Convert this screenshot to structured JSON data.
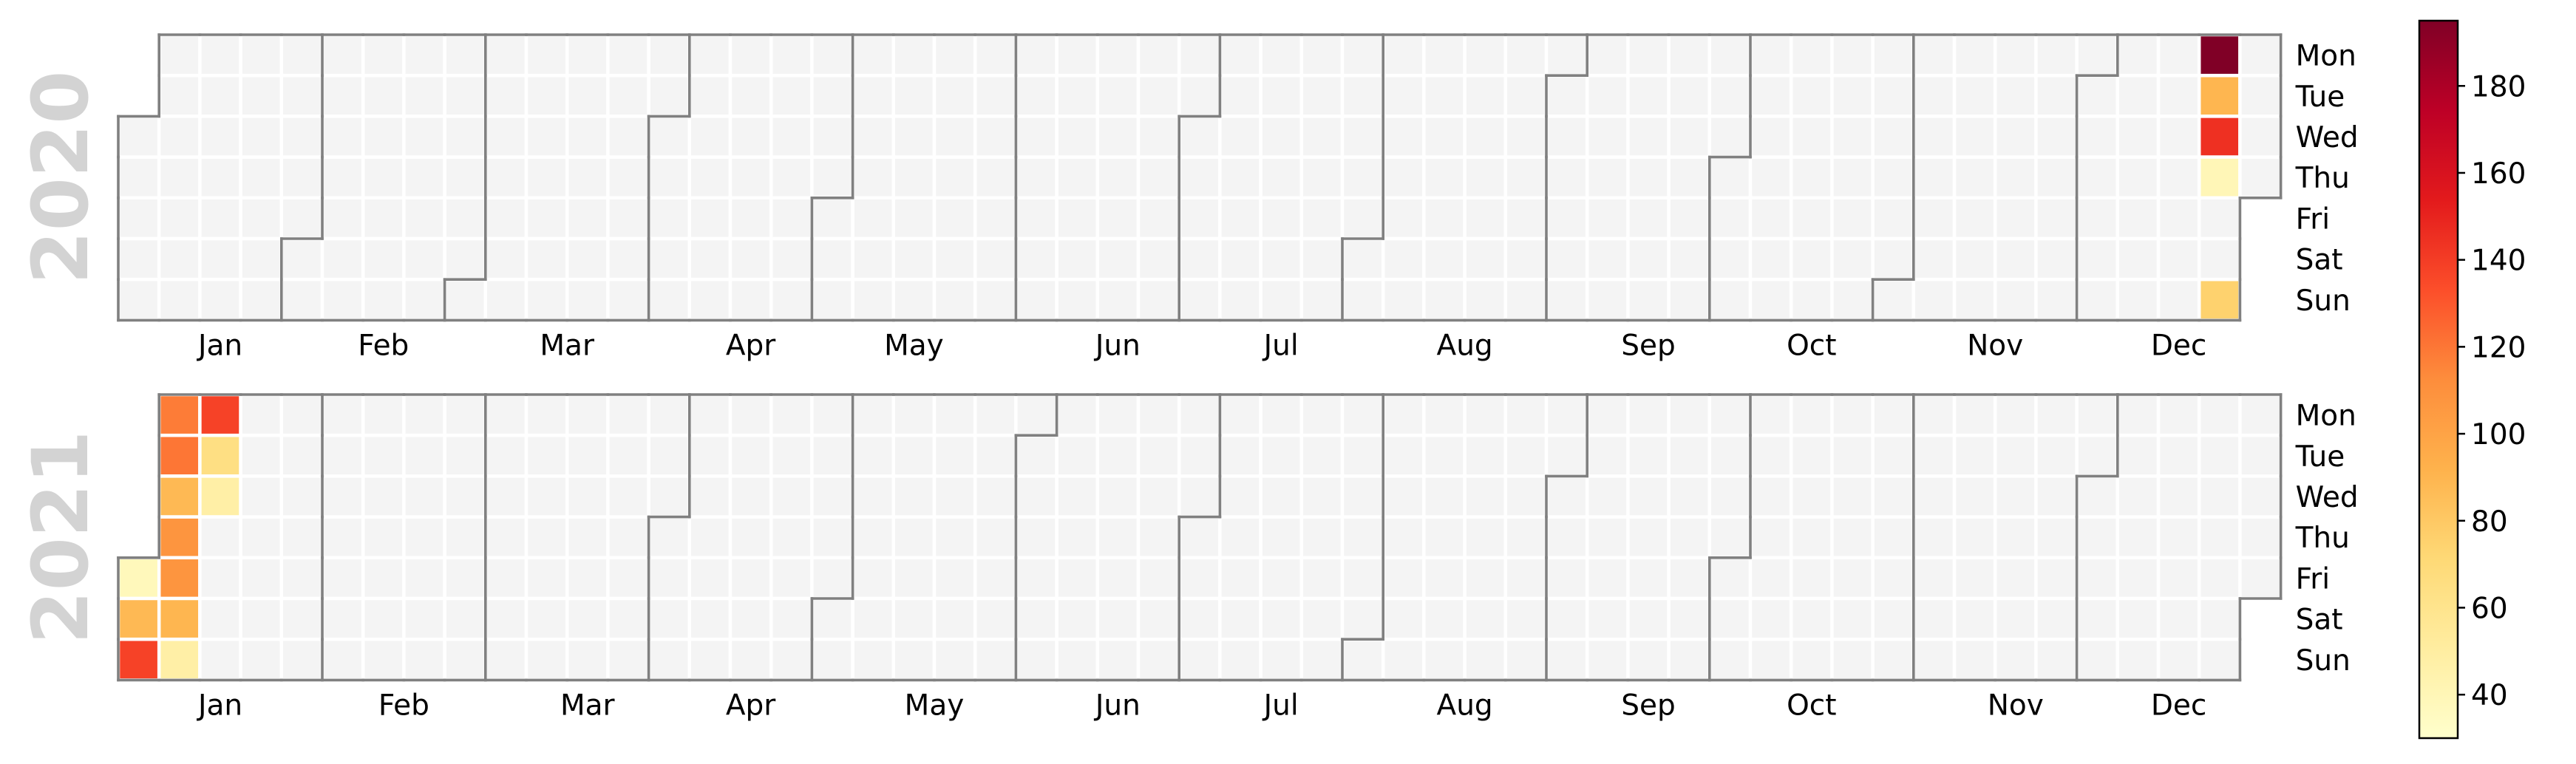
{
  "chart_data": {
    "type": "heatmap",
    "subtype": "calendar-heatmap",
    "years": [
      2020,
      2021
    ],
    "months": [
      "Jan",
      "Feb",
      "Mar",
      "Apr",
      "May",
      "Jun",
      "Jul",
      "Aug",
      "Sep",
      "Oct",
      "Nov",
      "Dec"
    ],
    "weekdays": [
      "Mon",
      "Tue",
      "Wed",
      "Thu",
      "Fri",
      "Sat",
      "Sun"
    ],
    "colormap": "YlOrRd",
    "colorbar": {
      "vmin": 30,
      "vmax": 195,
      "ticks": [
        40,
        60,
        80,
        100,
        120,
        140,
        160,
        180
      ],
      "placement": "right"
    },
    "empty_day_color": "#f4f4f4",
    "month_border_color": "#808080",
    "values": [
      {
        "date": "2020-12-21",
        "weekday": "Mon",
        "value": 195
      },
      {
        "date": "2020-12-22",
        "weekday": "Tue",
        "value": 90
      },
      {
        "date": "2020-12-23",
        "weekday": "Wed",
        "value": 145
      },
      {
        "date": "2020-12-24",
        "weekday": "Thu",
        "value": 40
      },
      {
        "date": "2020-12-27",
        "weekday": "Sun",
        "value": 75
      },
      {
        "date": "2021-01-01",
        "weekday": "Fri",
        "value": 38
      },
      {
        "date": "2021-01-02",
        "weekday": "Sat",
        "value": 88
      },
      {
        "date": "2021-01-03",
        "weekday": "Sun",
        "value": 138
      },
      {
        "date": "2021-01-04",
        "weekday": "Mon",
        "value": 118
      },
      {
        "date": "2021-01-05",
        "weekday": "Tue",
        "value": 120
      },
      {
        "date": "2021-01-06",
        "weekday": "Wed",
        "value": 88
      },
      {
        "date": "2021-01-07",
        "weekday": "Thu",
        "value": 108
      },
      {
        "date": "2021-01-08",
        "weekday": "Fri",
        "value": 108
      },
      {
        "date": "2021-01-09",
        "weekday": "Sat",
        "value": 90
      },
      {
        "date": "2021-01-10",
        "weekday": "Sun",
        "value": 48
      },
      {
        "date": "2021-01-11",
        "weekday": "Mon",
        "value": 138
      },
      {
        "date": "2021-01-12",
        "weekday": "Tue",
        "value": 65
      },
      {
        "date": "2021-01-13",
        "weekday": "Wed",
        "value": 48
      }
    ]
  }
}
